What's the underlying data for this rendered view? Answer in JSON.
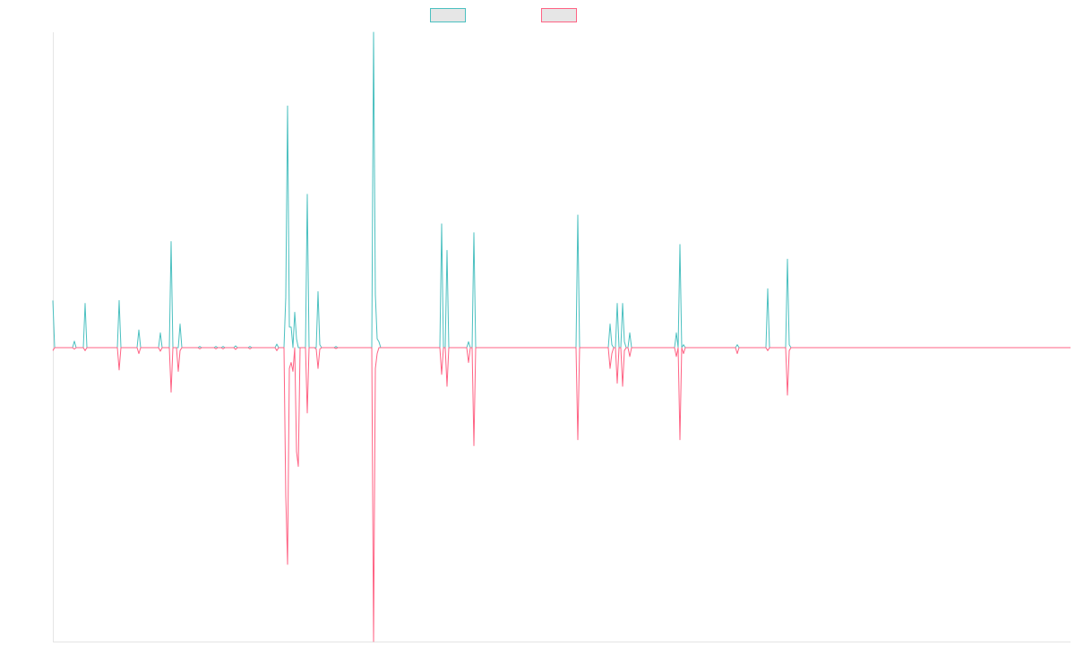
{
  "colors": {
    "series_a": "#4bc0c0",
    "series_b": "#ff6384",
    "axis": "#e5e5e5",
    "legend_fill": "#e6e6e6"
  },
  "chart_data": {
    "type": "line",
    "legend_placement": "top",
    "grid": false,
    "axes_visible": [
      "left",
      "bottom"
    ],
    "tick_labels_visible": false,
    "x": [
      0,
      1,
      2,
      3,
      4,
      5,
      6,
      7,
      8,
      9,
      10,
      11,
      12,
      13,
      14,
      15,
      16,
      17,
      18,
      19,
      20,
      21,
      22,
      23,
      24,
      25,
      26,
      27,
      28,
      29,
      30,
      31,
      32,
      33,
      34,
      35,
      36,
      37,
      38,
      39,
      40,
      41,
      42,
      43,
      44,
      45,
      46,
      47,
      48,
      49,
      50,
      51,
      52,
      53,
      54,
      55,
      56,
      57,
      58,
      59,
      60,
      61,
      62,
      63,
      64,
      65,
      66,
      67,
      68,
      69,
      70,
      71,
      72,
      73,
      74,
      75,
      76,
      77,
      78,
      79,
      80,
      81,
      82,
      83,
      84,
      85,
      86,
      87,
      88,
      89,
      90,
      91,
      92,
      93,
      94,
      95,
      96,
      97,
      98,
      99,
      100,
      101,
      102,
      103,
      104,
      105,
      106,
      107,
      108,
      109,
      110,
      111,
      112,
      113,
      114,
      115,
      116,
      117,
      118,
      119,
      120,
      121,
      122,
      123,
      124,
      125,
      126,
      127,
      128,
      129,
      130,
      131,
      132,
      133,
      134,
      135,
      136,
      137,
      138,
      139,
      140,
      141,
      142,
      143,
      144,
      145,
      146,
      147,
      148,
      149,
      150,
      151,
      152,
      153,
      154,
      155,
      156,
      157,
      158,
      159,
      160,
      161,
      162,
      163,
      164,
      165,
      166,
      167,
      168,
      169,
      170,
      171,
      172,
      173,
      174,
      175,
      176,
      177,
      178,
      179,
      180,
      181,
      182,
      183,
      184,
      185,
      186,
      187,
      188,
      189,
      190,
      191,
      192,
      193,
      194,
      195,
      196,
      197,
      198,
      199,
      200,
      201,
      202,
      203,
      204,
      205,
      206,
      207,
      208,
      209,
      210,
      211,
      212,
      213,
      214,
      215,
      216,
      217,
      218,
      219,
      220,
      221,
      222,
      223,
      224,
      225,
      226,
      227,
      228,
      229,
      230,
      231,
      232,
      233,
      234,
      235,
      236,
      237,
      238,
      239,
      240,
      241,
      242,
      243,
      244,
      245,
      246,
      247,
      248,
      249,
      250,
      251,
      252,
      253,
      254,
      255,
      256,
      257,
      258,
      259,
      260,
      261,
      262,
      263,
      264,
      265,
      266,
      267,
      268,
      269,
      270,
      271,
      272,
      273,
      274,
      275,
      276,
      277,
      278,
      279,
      280,
      281,
      282,
      283,
      284,
      285,
      286,
      287,
      288,
      289,
      290,
      291,
      292,
      293,
      294,
      295,
      296,
      297,
      298,
      299,
      300,
      301,
      302,
      303,
      304,
      305,
      306,
      307,
      308,
      309,
      310,
      311,
      312,
      313,
      314,
      315,
      316,
      317,
      318,
      319,
      320,
      321,
      322,
      323,
      324,
      325,
      326,
      327,
      328,
      329,
      330,
      331,
      332,
      333,
      334,
      335,
      336,
      337,
      338,
      339,
      340,
      341,
      342,
      343,
      344,
      345,
      346,
      347,
      348,
      349,
      350,
      351,
      352,
      353,
      354,
      355,
      356,
      357,
      358,
      359,
      360,
      361,
      362,
      363,
      364,
      365,
      366,
      367,
      368,
      369,
      370,
      371,
      372,
      373,
      374,
      375,
      376,
      377,
      378,
      379,
      380,
      381,
      382,
      383,
      384,
      385,
      386,
      387,
      388,
      389,
      390,
      391,
      392,
      393,
      394,
      395,
      396,
      397,
      398,
      399,
      400,
      401,
      402,
      403,
      404,
      405,
      406,
      407,
      408,
      409,
      410,
      411,
      412,
      413,
      414,
      415,
      416,
      417,
      418,
      419,
      420,
      421,
      422,
      423,
      424,
      425,
      426,
      427,
      428,
      429,
      430,
      431,
      432,
      433,
      434,
      435,
      436,
      437,
      438,
      439,
      440,
      441,
      442,
      443,
      444,
      445,
      446,
      447,
      448,
      449,
      450,
      451,
      452,
      453,
      454,
      455,
      456,
      457,
      458,
      459,
      460,
      461,
      462,
      463,
      464,
      465,
      466,
      467,
      468,
      469,
      470,
      471,
      472,
      473,
      474,
      475,
      476,
      477,
      478,
      479,
      480,
      481,
      482,
      483,
      484,
      485,
      486,
      487,
      488,
      489,
      490,
      491,
      492,
      493,
      494,
      495,
      496,
      497,
      498,
      499,
      500,
      501,
      502,
      503,
      504,
      505,
      506,
      507,
      508,
      509,
      510,
      511,
      512,
      513,
      514,
      515,
      516,
      517,
      518,
      519,
      520,
      521,
      522,
      523,
      524,
      525,
      526,
      527,
      528,
      529,
      530,
      531,
      532,
      533,
      534,
      535,
      536,
      537,
      538,
      539,
      540,
      541,
      542,
      543,
      544,
      545,
      546,
      547,
      548,
      549,
      550,
      551,
      552,
      553,
      554,
      555,
      556,
      557,
      558,
      559,
      560,
      561,
      562,
      563,
      564,
      565,
      566,
      567,
      568
    ],
    "xlim": [
      0,
      568
    ],
    "ylim": [
      -1,
      1
    ],
    "series": [
      {
        "name": "",
        "color": "#4bc0c0",
        "sparse_values": [
          [
            0,
            0.16
          ],
          [
            1,
            0
          ],
          [
            11,
            0
          ],
          [
            12,
            0.022
          ],
          [
            13,
            0
          ],
          [
            17,
            0
          ],
          [
            18,
            0.15
          ],
          [
            19,
            0
          ],
          [
            36,
            0
          ],
          [
            37,
            0.16
          ],
          [
            38,
            0
          ],
          [
            47,
            0
          ],
          [
            48,
            0.06
          ],
          [
            49,
            0
          ],
          [
            59,
            0
          ],
          [
            60,
            0.05
          ],
          [
            61,
            0
          ],
          [
            65,
            0
          ],
          [
            66,
            0.36
          ],
          [
            67,
            0
          ],
          [
            70,
            0
          ],
          [
            71,
            0.08
          ],
          [
            72,
            0
          ],
          [
            81,
            0
          ],
          [
            82,
            0.004
          ],
          [
            83,
            0
          ],
          [
            90,
            0
          ],
          [
            91,
            0.004
          ],
          [
            92,
            0
          ],
          [
            94,
            0
          ],
          [
            95,
            0.004
          ],
          [
            96,
            0
          ],
          [
            101,
            0
          ],
          [
            102,
            0.006
          ],
          [
            103,
            0
          ],
          [
            109,
            0
          ],
          [
            110,
            0.004
          ],
          [
            111,
            0
          ],
          [
            124,
            0
          ],
          [
            125,
            0.012
          ],
          [
            126,
            0
          ],
          [
            129,
            0
          ],
          [
            130,
            0.17
          ],
          [
            131,
            0.82
          ],
          [
            132,
            0.07
          ],
          [
            133,
            0.07
          ],
          [
            134,
            0
          ],
          [
            135,
            0.12
          ],
          [
            136,
            0.03
          ],
          [
            137,
            0
          ],
          [
            141,
            0
          ],
          [
            142,
            0.52
          ],
          [
            143,
            0
          ],
          [
            147,
            0
          ],
          [
            148,
            0.19
          ],
          [
            149,
            0.01
          ],
          [
            150,
            0
          ],
          [
            157,
            0
          ],
          [
            158,
            0.004
          ],
          [
            159,
            0
          ],
          [
            178,
            0
          ],
          [
            179,
            1.07
          ],
          [
            180,
            0.18
          ],
          [
            181,
            0.03
          ],
          [
            182,
            0.02
          ],
          [
            183,
            0
          ],
          [
            216,
            0
          ],
          [
            217,
            0.42
          ],
          [
            218,
            0
          ],
          [
            220,
            0.33
          ],
          [
            221,
            0
          ],
          [
            231,
            0
          ],
          [
            232,
            0.02
          ],
          [
            233,
            0
          ],
          [
            235,
            0.39
          ],
          [
            236,
            0
          ],
          [
            292,
            0
          ],
          [
            293,
            0.45
          ],
          [
            294,
            0
          ],
          [
            310,
            0
          ],
          [
            311,
            0.08
          ],
          [
            312,
            0.01
          ],
          [
            313,
            0
          ],
          [
            315,
            0.15
          ],
          [
            316,
            0
          ],
          [
            318,
            0.15
          ],
          [
            319,
            0.02
          ],
          [
            320,
            0
          ],
          [
            322,
            0.05
          ],
          [
            323,
            0
          ],
          [
            347,
            0
          ],
          [
            348,
            0.05
          ],
          [
            349,
            0
          ],
          [
            350,
            0.35
          ],
          [
            351,
            0
          ],
          [
            352,
            0.01
          ],
          [
            353,
            0
          ],
          [
            381,
            0
          ],
          [
            382,
            0.01
          ],
          [
            383,
            0
          ],
          [
            398,
            0
          ],
          [
            399,
            0.2
          ],
          [
            400,
            0
          ],
          [
            409,
            0
          ],
          [
            410,
            0.3
          ],
          [
            411,
            0.01
          ],
          [
            412,
            0
          ]
        ]
      },
      {
        "name": "",
        "color": "#ff6384",
        "sparse_values": [
          [
            0,
            -0.01
          ],
          [
            1,
            0
          ],
          [
            11,
            0
          ],
          [
            12,
            -0.005
          ],
          [
            13,
            0
          ],
          [
            17,
            0
          ],
          [
            18,
            -0.01
          ],
          [
            19,
            0
          ],
          [
            36,
            0
          ],
          [
            37,
            -0.075
          ],
          [
            38,
            0
          ],
          [
            47,
            0
          ],
          [
            48,
            -0.02
          ],
          [
            49,
            0
          ],
          [
            59,
            0
          ],
          [
            60,
            -0.012
          ],
          [
            61,
            0
          ],
          [
            65,
            0
          ],
          [
            66,
            -0.15
          ],
          [
            67,
            0
          ],
          [
            70,
            -0.08
          ],
          [
            71,
            -0.01
          ],
          [
            72,
            0
          ],
          [
            81,
            0
          ],
          [
            82,
            -0.004
          ],
          [
            83,
            0
          ],
          [
            90,
            0
          ],
          [
            91,
            -0.004
          ],
          [
            92,
            0
          ],
          [
            94,
            0
          ],
          [
            95,
            -0.004
          ],
          [
            96,
            0
          ],
          [
            101,
            0
          ],
          [
            102,
            -0.006
          ],
          [
            103,
            0
          ],
          [
            109,
            0
          ],
          [
            110,
            -0.004
          ],
          [
            111,
            0
          ],
          [
            124,
            0
          ],
          [
            125,
            -0.01
          ],
          [
            126,
            0
          ],
          [
            129,
            0
          ],
          [
            130,
            -0.5
          ],
          [
            131,
            -0.73
          ],
          [
            132,
            -0.07
          ],
          [
            133,
            -0.05
          ],
          [
            134,
            -0.08
          ],
          [
            135,
            0
          ],
          [
            136,
            -0.35
          ],
          [
            137,
            -0.4
          ],
          [
            138,
            0
          ],
          [
            141,
            0
          ],
          [
            142,
            -0.22
          ],
          [
            143,
            0
          ],
          [
            146,
            0
          ],
          [
            147,
            -0.005
          ],
          [
            148,
            -0.07
          ],
          [
            149,
            -0.005
          ],
          [
            150,
            0
          ],
          [
            157,
            0
          ],
          [
            158,
            -0.003
          ],
          [
            159,
            0
          ],
          [
            178,
            0
          ],
          [
            179,
            -0.99
          ],
          [
            180,
            -0.07
          ],
          [
            181,
            -0.02
          ],
          [
            182,
            0
          ],
          [
            216,
            0
          ],
          [
            217,
            -0.09
          ],
          [
            218,
            0
          ],
          [
            220,
            -0.13
          ],
          [
            221,
            0
          ],
          [
            231,
            0
          ],
          [
            232,
            -0.05
          ],
          [
            233,
            0
          ],
          [
            235,
            -0.33
          ],
          [
            236,
            0
          ],
          [
            292,
            0
          ],
          [
            293,
            -0.31
          ],
          [
            294,
            0
          ],
          [
            310,
            0
          ],
          [
            311,
            -0.07
          ],
          [
            312,
            -0.02
          ],
          [
            313,
            0
          ],
          [
            315,
            -0.12
          ],
          [
            316,
            0
          ],
          [
            318,
            -0.13
          ],
          [
            319,
            -0.01
          ],
          [
            320,
            0
          ],
          [
            322,
            -0.03
          ],
          [
            323,
            0
          ],
          [
            347,
            0
          ],
          [
            348,
            -0.03
          ],
          [
            349,
            0
          ],
          [
            350,
            -0.31
          ],
          [
            351,
            0
          ],
          [
            352,
            -0.02
          ],
          [
            353,
            0
          ],
          [
            381,
            0
          ],
          [
            382,
            -0.02
          ],
          [
            383,
            0
          ],
          [
            398,
            0
          ],
          [
            399,
            -0.01
          ],
          [
            400,
            0
          ],
          [
            409,
            0
          ],
          [
            410,
            -0.16
          ],
          [
            411,
            -0.01
          ],
          [
            412,
            0
          ]
        ]
      }
    ]
  }
}
